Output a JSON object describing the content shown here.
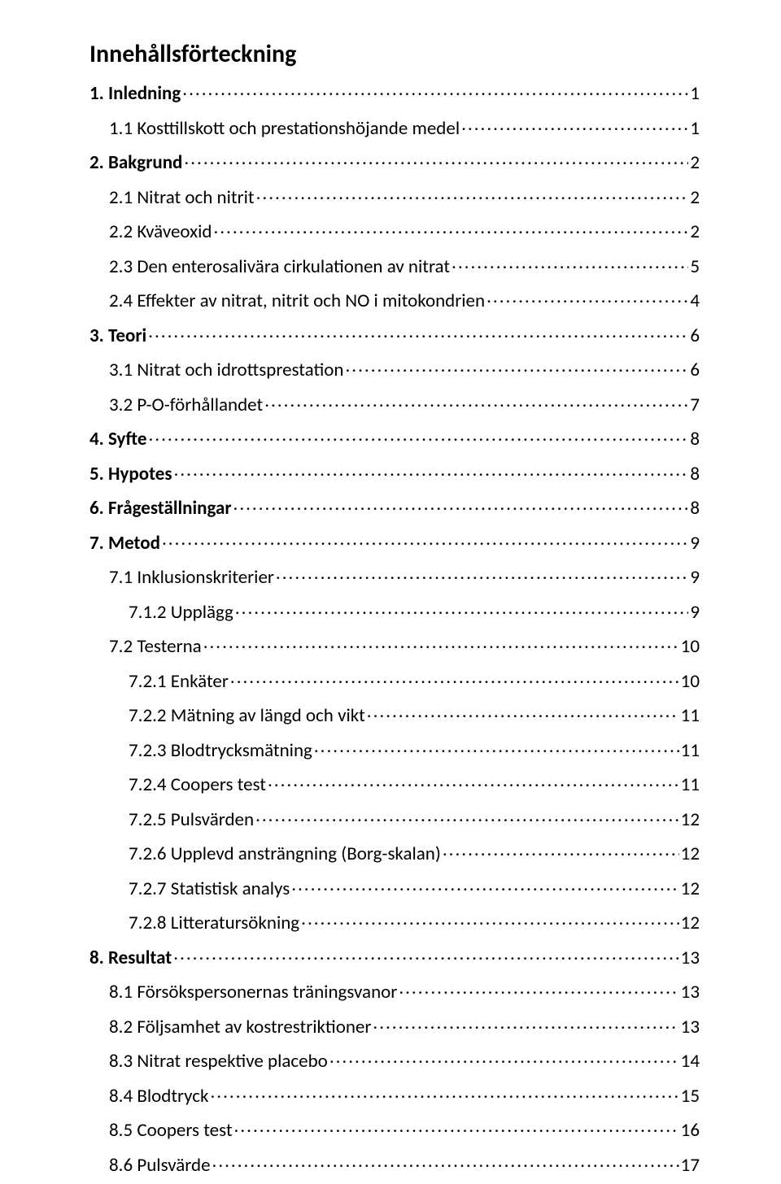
{
  "title": "Innehållsförteckning",
  "entries": [
    {
      "label": "1. Inledning",
      "page": "1",
      "bold": true,
      "indent": 0
    },
    {
      "label": "1.1 Kosttillskott och prestationshöjande medel",
      "page": "1",
      "bold": false,
      "indent": 1
    },
    {
      "label": "2. Bakgrund",
      "page": "2",
      "bold": true,
      "indent": 0
    },
    {
      "label": "2.1 Nitrat och nitrit",
      "page": "2",
      "bold": false,
      "indent": 1
    },
    {
      "label": "2.2 Kväveoxid",
      "page": "2",
      "bold": false,
      "indent": 1
    },
    {
      "label": "2.3 Den enterosalivära cirkulationen av nitrat",
      "page": "5",
      "bold": false,
      "indent": 1
    },
    {
      "label": "2.4 Effekter av nitrat, nitrit och NO i mitokondrien",
      "page": "4",
      "bold": false,
      "indent": 1
    },
    {
      "label": "3. Teori",
      "page": "6",
      "bold": true,
      "indent": 0
    },
    {
      "label": "3.1 Nitrat och idrottsprestation",
      "page": "6",
      "bold": false,
      "indent": 1
    },
    {
      "label": "3.2 P-O-förhållandet",
      "page": "7",
      "bold": false,
      "indent": 1
    },
    {
      "label": "4. Syfte",
      "page": "8",
      "bold": true,
      "indent": 0
    },
    {
      "label": "5. Hypotes",
      "page": "8",
      "bold": true,
      "indent": 0
    },
    {
      "label": "6. Frågeställningar",
      "page": "8",
      "bold": true,
      "indent": 0
    },
    {
      "label": "7. Metod",
      "page": "9",
      "bold": true,
      "indent": 0
    },
    {
      "label": "7.1 Inklusionskriterier",
      "page": "9",
      "bold": false,
      "indent": 1
    },
    {
      "label": "7.1.2 Upplägg",
      "page": "9",
      "bold": false,
      "indent": 2
    },
    {
      "label": "7.2 Testerna",
      "page": "10",
      "bold": false,
      "indent": 1
    },
    {
      "label": "7.2.1 Enkäter",
      "page": "10",
      "bold": false,
      "indent": 2
    },
    {
      "label": "7.2.2 Mätning av längd och vikt",
      "page": "11",
      "bold": false,
      "indent": 2
    },
    {
      "label": "7.2.3 Blodtrycksmätning",
      "page": "11",
      "bold": false,
      "indent": 2
    },
    {
      "label": "7.2.4 Coopers test",
      "page": "11",
      "bold": false,
      "indent": 2
    },
    {
      "label": "7.2.5 Pulsvärden",
      "page": "12",
      "bold": false,
      "indent": 2
    },
    {
      "label": "7.2.6 Upplevd ansträngning (Borg-skalan)",
      "page": "12",
      "bold": false,
      "indent": 2
    },
    {
      "label": "7.2.7 Statistisk analys",
      "page": "12",
      "bold": false,
      "indent": 2
    },
    {
      "label": "7.2.8 Litteratursökning",
      "page": "12",
      "bold": false,
      "indent": 2
    },
    {
      "label": "8. Resultat",
      "page": "13",
      "bold": true,
      "indent": 0
    },
    {
      "label": "8.1 Försökspersonernas träningsvanor",
      "page": "13",
      "bold": false,
      "indent": 1
    },
    {
      "label": "8.2 Följsamhet av kostrestriktioner",
      "page": "13",
      "bold": false,
      "indent": 1
    },
    {
      "label": "8.3 Nitrat respektive placebo",
      "page": "14",
      "bold": false,
      "indent": 1
    },
    {
      "label": "8.4 Blodtryck",
      "page": "15",
      "bold": false,
      "indent": 1
    },
    {
      "label": "8.5 Coopers test",
      "page": "16",
      "bold": false,
      "indent": 1
    },
    {
      "label": "8.6 Pulsvärde",
      "page": "17",
      "bold": false,
      "indent": 1
    }
  ]
}
